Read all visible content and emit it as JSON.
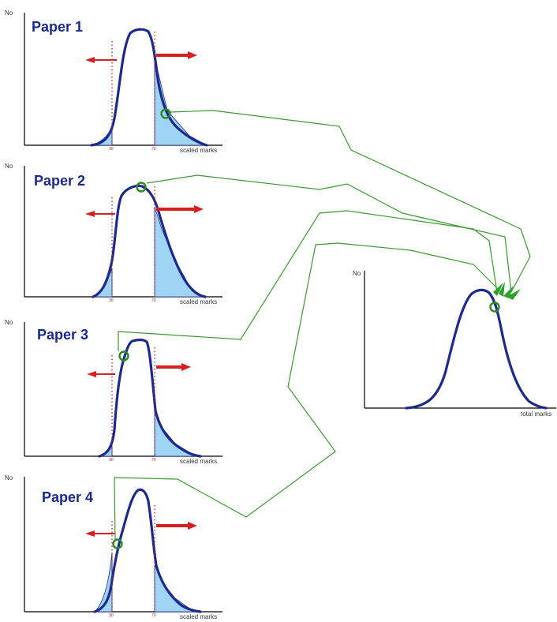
{
  "diagram": {
    "papers": [
      {
        "title": "Paper 1",
        "y_axis_label": "No",
        "x_axis_label": "scaled marks",
        "tick_low": "30",
        "tick_high": "70"
      },
      {
        "title": "Paper 2",
        "y_axis_label": "No",
        "x_axis_label": "scaled marks",
        "tick_low": "30",
        "tick_high": "70"
      },
      {
        "title": "Paper 3",
        "y_axis_label": "No",
        "x_axis_label": "scaled marks",
        "tick_low": "30",
        "tick_high": "70"
      },
      {
        "title": "Paper 4",
        "y_axis_label": "No",
        "x_axis_label": "scaled marks",
        "tick_low": "30",
        "tick_high": "70"
      }
    ],
    "total": {
      "y_axis_label": "No",
      "x_axis_label": "total marks"
    },
    "colors": {
      "curve": "#1b2a8c",
      "tail_fill": "#9fd4f5",
      "tail_fill_stroke": "#1b2a8c",
      "marker_arrow": "#d42020",
      "connector": "#3a9a2e",
      "selected_circle": "#2a8a22",
      "axis": "#000000"
    }
  }
}
